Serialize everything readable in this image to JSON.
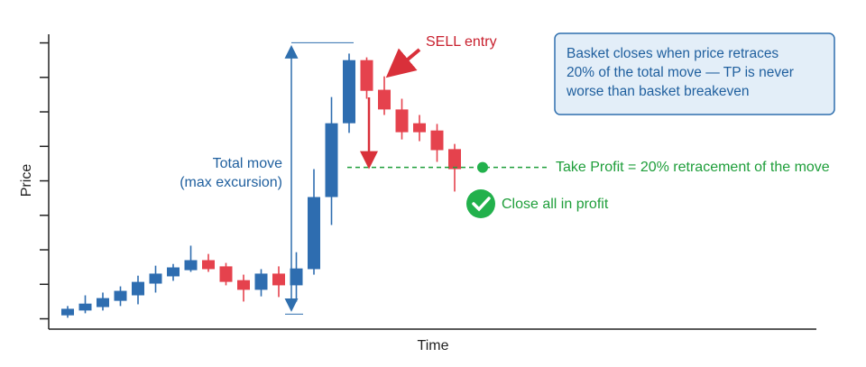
{
  "chart_data": {
    "type": "candlestick",
    "x_label": "Time",
    "y_label": "Price",
    "ylim": [
      -0.3,
      8.25
    ],
    "yticks": [
      0,
      1,
      2,
      3,
      4,
      5,
      6,
      7,
      8
    ],
    "up_color": "#2e6db0",
    "down_color": "#e5424d",
    "open": [
      0.1,
      0.24,
      0.34,
      0.52,
      0.68,
      1.02,
      1.23,
      1.41,
      1.7,
      1.52,
      1.12,
      0.84,
      1.31,
      0.97,
      1.44,
      3.53,
      5.67,
      7.5,
      6.64,
      6.07,
      5.67,
      5.46,
      4.92
    ],
    "high": [
      0.37,
      0.68,
      0.76,
      0.94,
      1.25,
      1.54,
      1.59,
      2.12,
      1.88,
      1.62,
      1.28,
      1.44,
      1.52,
      1.93,
      4.34,
      6.43,
      7.69,
      7.58,
      7.03,
      6.38,
      5.91,
      5.65,
      5.07
    ],
    "low": [
      0.03,
      0.16,
      0.24,
      0.37,
      0.42,
      0.76,
      1.1,
      1.36,
      1.36,
      0.97,
      0.5,
      0.65,
      0.63,
      0.5,
      1.28,
      2.72,
      5.39,
      6.38,
      5.91,
      5.2,
      5.15,
      4.55,
      3.69
    ],
    "close": [
      0.29,
      0.44,
      0.6,
      0.81,
      1.07,
      1.31,
      1.49,
      1.7,
      1.44,
      1.07,
      0.84,
      1.31,
      0.97,
      1.46,
      3.53,
      5.67,
      7.5,
      6.61,
      6.07,
      5.41,
      5.41,
      4.89,
      4.34
    ],
    "take_profit": 4.39,
    "annotations": {
      "sell_entry": "SELL entry",
      "total_move": "Total move",
      "max_excursion": "(max excursion)",
      "take_profit_label": "Take Profit = 20% retracement of the move",
      "close_all": "Close all in profit",
      "note": [
        "Basket closes when price retraces",
        "20% of the total move — TP is never",
        "worse than basket breakeven"
      ]
    }
  }
}
